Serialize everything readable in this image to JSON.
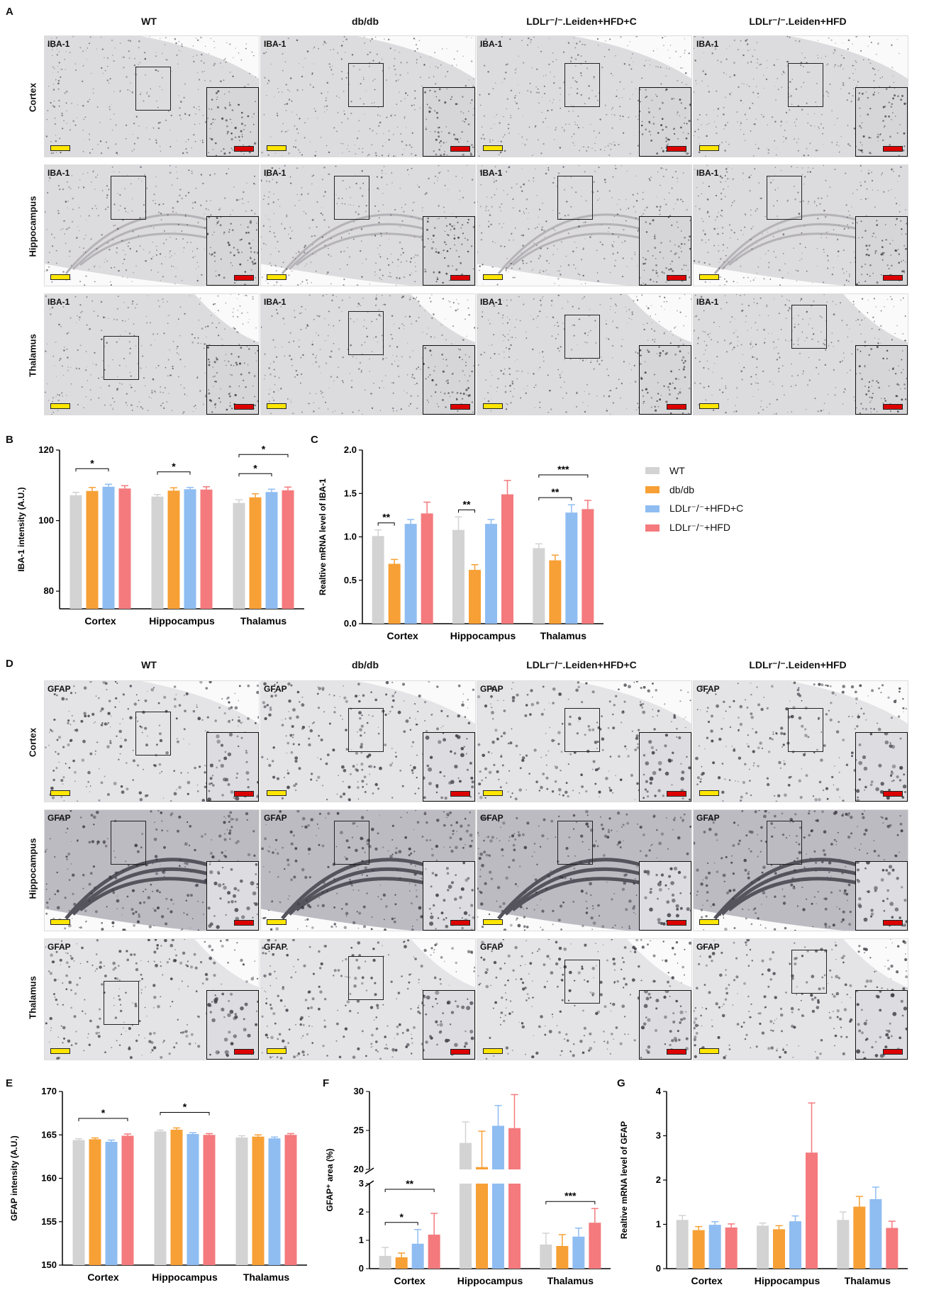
{
  "panel_letters": {
    "A": "A",
    "B": "B",
    "C": "C",
    "D": "D",
    "E": "E",
    "F": "F",
    "G": "G"
  },
  "column_headers": [
    "WT",
    "db/db",
    "LDLr⁻/⁻.Leiden+HFD+C",
    "LDLr⁻/⁻.Leiden+HFD"
  ],
  "row_labels": [
    "Cortex",
    "Hippocampus",
    "Thalamus"
  ],
  "stain_iba": "IBA-1",
  "stain_gfap": "GFAP",
  "legend": {
    "items": [
      "WT",
      "db/db",
      "LDLr⁻/⁻+HFD+C",
      "LDLr⁻/⁻+HFD"
    ],
    "colors": [
      "#d3d3d3",
      "#f7a035",
      "#8fbdf2",
      "#f47a7d"
    ]
  },
  "chart_data": [
    {
      "id": "B",
      "type": "bar",
      "categories": [
        "Cortex",
        "Hippocampus",
        "Thalamus"
      ],
      "ylabel": "IBA-1 intensity (A.U.)",
      "ylim": [
        75,
        120
      ],
      "yticks": [
        80,
        100,
        120
      ],
      "series": [
        {
          "name": "WT",
          "values": [
            107.2,
            106.8,
            105.0
          ],
          "err": [
            0.8,
            0.6,
            0.9
          ]
        },
        {
          "name": "db/db",
          "values": [
            108.4,
            108.5,
            106.6
          ],
          "err": [
            1.0,
            0.8,
            1.0
          ]
        },
        {
          "name": "LDLr⁻/⁻+HFD+C",
          "values": [
            109.6,
            108.9,
            108.1
          ],
          "err": [
            0.7,
            0.5,
            0.8
          ]
        },
        {
          "name": "LDLr⁻/⁻+HFD",
          "values": [
            109.1,
            108.8,
            108.6
          ],
          "err": [
            0.8,
            0.8,
            0.9
          ]
        }
      ],
      "sig": [
        {
          "cat": 0,
          "from": 0,
          "to": 2,
          "label": "*",
          "level": 1
        },
        {
          "cat": 1,
          "from": 0,
          "to": 2,
          "label": "*",
          "level": 1
        },
        {
          "cat": 2,
          "from": 0,
          "to": 2,
          "label": "*",
          "level": 1
        },
        {
          "cat": 2,
          "from": 0,
          "to": 3,
          "label": "*",
          "level": 2
        }
      ]
    },
    {
      "id": "C",
      "type": "bar",
      "categories": [
        "Cortex",
        "Hippocampus",
        "Thalamus"
      ],
      "ylabel": "Realtive mRNA level of IBA-1",
      "ylim": [
        0,
        2.0
      ],
      "yticks": [
        0.0,
        0.5,
        1.0,
        1.5,
        2.0
      ],
      "series": [
        {
          "name": "WT",
          "values": [
            1.01,
            1.08,
            0.87
          ],
          "err": [
            0.07,
            0.15,
            0.05
          ]
        },
        {
          "name": "db/db",
          "values": [
            0.69,
            0.62,
            0.73
          ],
          "err": [
            0.05,
            0.06,
            0.06
          ]
        },
        {
          "name": "LDLr⁻/⁻+HFD+C",
          "values": [
            1.15,
            1.15,
            1.28
          ],
          "err": [
            0.05,
            0.05,
            0.09
          ]
        },
        {
          "name": "LDLr⁻/⁻+HFD",
          "values": [
            1.27,
            1.49,
            1.32
          ],
          "err": [
            0.13,
            0.16,
            0.1
          ]
        }
      ],
      "sig": [
        {
          "cat": 0,
          "from": 0,
          "to": 1,
          "label": "**",
          "level": 1
        },
        {
          "cat": 1,
          "from": 0,
          "to": 1,
          "label": "**",
          "level": 1
        },
        {
          "cat": 2,
          "from": 0,
          "to": 2,
          "label": "**",
          "level": 1
        },
        {
          "cat": 2,
          "from": 0,
          "to": 3,
          "label": "***",
          "level": 2
        }
      ]
    },
    {
      "id": "E",
      "type": "bar",
      "categories": [
        "Cortex",
        "Hippocampus",
        "Thalamus"
      ],
      "ylabel": "GFAP intensity (A.U.)",
      "ylim": [
        150,
        170
      ],
      "yticks": [
        150,
        155,
        160,
        165,
        170
      ],
      "series": [
        {
          "name": "WT",
          "values": [
            164.4,
            165.4,
            164.7
          ],
          "err": [
            0.15,
            0.15,
            0.2
          ]
        },
        {
          "name": "db/db",
          "values": [
            164.5,
            165.6,
            164.8
          ],
          "err": [
            0.15,
            0.2,
            0.2
          ]
        },
        {
          "name": "LDLr⁻/⁻+HFD+C",
          "values": [
            164.2,
            165.1,
            164.6
          ],
          "err": [
            0.2,
            0.15,
            0.15
          ]
        },
        {
          "name": "LDLr⁻/⁻+HFD",
          "values": [
            164.9,
            165.0,
            165.0
          ],
          "err": [
            0.2,
            0.15,
            0.15
          ]
        }
      ],
      "sig": [
        {
          "cat": 0,
          "from": 0,
          "to": 3,
          "label": "*",
          "level": 1
        },
        {
          "cat": 1,
          "from": 0,
          "to": 3,
          "label": "*",
          "level": 1
        }
      ]
    },
    {
      "id": "F",
      "type": "bar",
      "categories": [
        "Cortex",
        "Hippocampus",
        "Thalamus"
      ],
      "ylabel": "GFAP⁺ area (%)",
      "broken_axis": true,
      "lower_ylim": [
        0,
        3
      ],
      "lower_yticks": [
        0,
        1,
        2,
        3
      ],
      "upper_ylim": [
        20,
        30
      ],
      "upper_yticks": [
        20,
        25,
        30
      ],
      "series": [
        {
          "name": "WT",
          "values": [
            0.45,
            23.4,
            0.85
          ],
          "err": [
            0.3,
            2.7,
            0.4
          ]
        },
        {
          "name": "db/db",
          "values": [
            0.4,
            20.3,
            0.8
          ],
          "err": [
            0.15,
            4.6,
            0.4
          ]
        },
        {
          "name": "LDLr⁻/⁻+HFD+C",
          "values": [
            0.88,
            25.6,
            1.13
          ],
          "err": [
            0.5,
            2.6,
            0.3
          ]
        },
        {
          "name": "LDLr⁻/⁻+HFD",
          "values": [
            1.2,
            25.3,
            1.62
          ],
          "err": [
            0.75,
            4.3,
            0.5
          ]
        }
      ],
      "sig": [
        {
          "cat": 0,
          "from": 0,
          "to": 2,
          "label": "*",
          "level": 1
        },
        {
          "cat": 0,
          "from": 0,
          "to": 3,
          "label": "**",
          "level": 2
        },
        {
          "cat": 2,
          "from": 0,
          "to": 3,
          "label": "***",
          "level": 1
        }
      ]
    },
    {
      "id": "G",
      "type": "bar",
      "categories": [
        "Cortex",
        "Hippocampus",
        "Thalamus"
      ],
      "ylabel": "Realtive mRNA level of GFAP",
      "ylim": [
        0,
        4
      ],
      "yticks": [
        0,
        1,
        2,
        3,
        4
      ],
      "series": [
        {
          "name": "WT",
          "values": [
            1.1,
            0.97,
            1.1
          ],
          "err": [
            0.1,
            0.06,
            0.18
          ]
        },
        {
          "name": "db/db",
          "values": [
            0.87,
            0.89,
            1.4
          ],
          "err": [
            0.08,
            0.08,
            0.23
          ]
        },
        {
          "name": "LDLr⁻/⁻+HFD+C",
          "values": [
            0.99,
            1.07,
            1.57
          ],
          "err": [
            0.07,
            0.12,
            0.27
          ]
        },
        {
          "name": "LDLr⁻/⁻+HFD",
          "values": [
            0.93,
            2.62,
            0.92
          ],
          "err": [
            0.08,
            1.12,
            0.15
          ]
        }
      ],
      "sig": []
    }
  ]
}
